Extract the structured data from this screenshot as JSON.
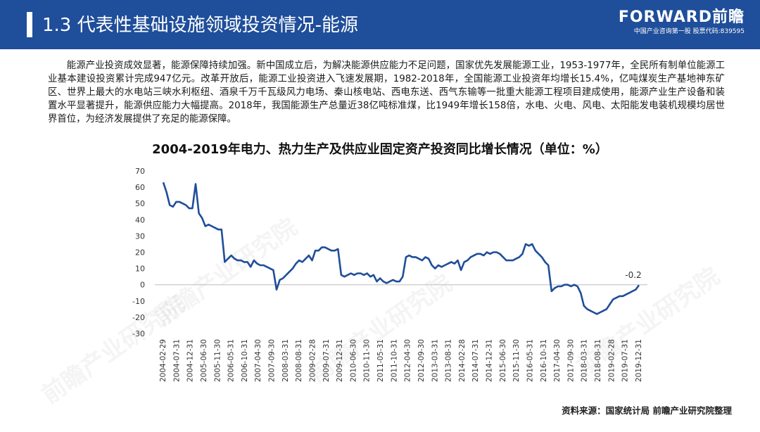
{
  "header": {
    "title": "1.3 代表性基础设施领域投资情况-能源",
    "brand": "FORWARD前瞻",
    "brand_sub": "中国产业咨询第一股 股票代码:839595"
  },
  "intro_text": "能源产业投资成效显著，能源保障持续加强。新中国成立后，为解决能源供应能力不足问题，国家优先发展能源工业，1953-1977年，全民所有制单位能源工业基本建设投资累计完成947亿元。改革开放后，能源工业投资进入飞速发展期，1982-2018年，全国能源工业投资年均增长15.4%，亿吨煤炭生产基地神东矿区、世界上最大的水电站三峡水利枢纽、酒泉千万千瓦级风力电场、秦山核电站、西电东送、西气东输等一批重大能源工程项目建成使用，能源产业生产设备和装置水平显著提升，能源供应能力大幅提高。2018年，我国能源生产总量近38亿吨标准煤，比1949年增长158倍，水电、火电、风电、太阳能发电装机规模均居世界首位，为经济发展提供了充足的能源保障。",
  "watermarks": [
    "前瞻产业研究院",
    "前瞻产业研究院",
    "前瞻产业研究院",
    "前瞻产业研究院"
  ],
  "chart_data": {
    "type": "line",
    "title": "2004-2019年电力、热力生产及供应业固定资产投资同比增长情况（单位：%）",
    "xlabel": "",
    "ylabel": "",
    "ylim": [
      -30,
      70
    ],
    "yticks": [
      -30,
      -20,
      -10,
      0,
      10,
      20,
      30,
      40,
      50,
      60,
      70
    ],
    "xticks": [
      "2004-02-29",
      "2004-07-31",
      "2004-12-31",
      "2005-06-30",
      "2005-11-30",
      "2006-05-31",
      "2006-10-31",
      "2007-04-30",
      "2007-09-30",
      "2008-03-31",
      "2008-08-31",
      "2009-02-28",
      "2009-07-31",
      "2009-12-31",
      "2010-06-30",
      "2010-11-30",
      "2011-05-31",
      "2011-10-31",
      "2012-04-30",
      "2012-09-30",
      "2013-03-31",
      "2013-08-31",
      "2014-02-28",
      "2014-07-31",
      "2014-12-31",
      "2015-06-30",
      "2015-11-30",
      "2016-05-31",
      "2016-10-31",
      "2017-04-30",
      "2017-09-30",
      "2018-03-31",
      "2018-08-31",
      "2019-02-28",
      "2019-07-31",
      "2019-12-31"
    ],
    "grid": false,
    "line_color": "#1f4e9a",
    "series": [
      {
        "values": [
          63,
          57,
          49,
          48,
          51,
          51,
          50,
          49,
          47,
          47,
          62,
          44,
          41,
          36,
          37,
          36,
          35,
          34,
          34,
          14,
          16,
          18,
          16,
          15,
          15,
          14,
          14,
          11,
          15,
          13,
          12,
          12,
          11,
          10,
          9,
          -3,
          3,
          4,
          6,
          8,
          10,
          13,
          15,
          14,
          16,
          18,
          15,
          21,
          21,
          23,
          23,
          22,
          21,
          21,
          22,
          6,
          5,
          6,
          7,
          6,
          7,
          7,
          6,
          7,
          5,
          6,
          2,
          4,
          2,
          1,
          2,
          3,
          2,
          2,
          5,
          17,
          18,
          17,
          17,
          16,
          15,
          17,
          16,
          12,
          10,
          12,
          11,
          12,
          13,
          14,
          13,
          15,
          9,
          14,
          15,
          17,
          18,
          19,
          19,
          18,
          20,
          19,
          20,
          20,
          19,
          17,
          15,
          15,
          15,
          16,
          17,
          19,
          25,
          24,
          25,
          21,
          19,
          17,
          14,
          12,
          -4,
          -2,
          -1,
          -1,
          0,
          0,
          -1,
          0,
          -1,
          -5,
          -13,
          -15,
          -16,
          -17,
          -18,
          -17,
          -16,
          -15,
          -12,
          -9,
          -8,
          -7,
          -7,
          -6,
          -5,
          -4,
          -3,
          -0.2
        ]
      }
    ],
    "annotations": [
      {
        "text": "-0.2"
      }
    ]
  },
  "source": "资料来源：国家统计局 前瞻产业研究院整理"
}
